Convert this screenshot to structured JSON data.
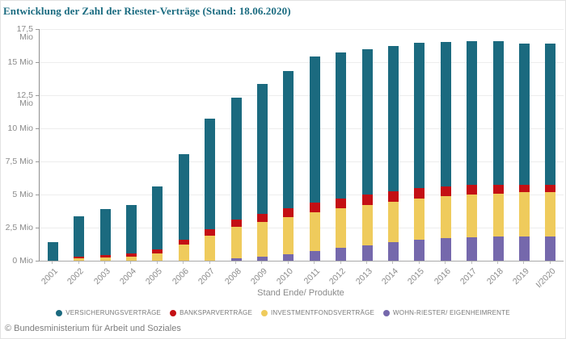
{
  "title": "Entwicklung der Zahl der Riester-Verträge (Stand: 18.06.2020)",
  "footer": "© Bundesministerium für Arbeit und Soziales",
  "colors": {
    "title": "#1A6B80",
    "insurance": "#1B6A7F",
    "bank": "#C40F14",
    "funds": "#EFCB5C",
    "homeownership": "#7568AC",
    "axis_text": "#8a8a8a",
    "gridline": "#ededed"
  },
  "chart_data": {
    "type": "bar",
    "stacked": true,
    "title": "Entwicklung der Zahl der Riester-Verträge (Stand: 18.06.2020)",
    "xlabel": "Stand Ende/ Produkte",
    "ylabel": "",
    "unit": "Mio",
    "ylim": [
      0,
      17.5
    ],
    "grid": "horizontal",
    "legend_position": "bottom",
    "categories": [
      "2001",
      "2002",
      "2003",
      "2004",
      "2005",
      "2006",
      "2007",
      "2008",
      "2009",
      "2010",
      "2011",
      "2012",
      "2013",
      "2014",
      "2015",
      "2016",
      "2017",
      "2018",
      "2019",
      "I/2020"
    ],
    "yticks": [
      {
        "v": 17.5,
        "label": "17,5 Mio"
      },
      {
        "v": 15,
        "label": "15 Mio"
      },
      {
        "v": 12.5,
        "label": "12,5 Mio"
      },
      {
        "v": 10,
        "label": "10 Mio"
      },
      {
        "v": 7.5,
        "label": "7,5 Mio"
      },
      {
        "v": 5,
        "label": "5 Mio"
      },
      {
        "v": 2.5,
        "label": "2,5 Mio"
      },
      {
        "v": 0,
        "label": "0 Mio"
      }
    ],
    "stack_order": "bottom-to-top is reverse of series list",
    "series": [
      {
        "name": "VERSICHERUNGSVERTRÄGE",
        "color": "#1B6A7F",
        "values": [
          1.4,
          3.05,
          3.49,
          3.66,
          4.8,
          6.47,
          8.36,
          9.19,
          9.79,
          10.38,
          11.0,
          11.02,
          11.01,
          10.94,
          10.97,
          10.91,
          10.85,
          10.82,
          10.67,
          10.65
        ]
      },
      {
        "name": "BANKSPARVERTRÄGE",
        "color": "#C40F14",
        "values": [
          0,
          0.15,
          0.2,
          0.21,
          0.26,
          0.35,
          0.48,
          0.55,
          0.63,
          0.7,
          0.75,
          0.78,
          0.81,
          0.81,
          0.8,
          0.77,
          0.73,
          0.66,
          0.6,
          0.58
        ]
      },
      {
        "name": "INVESTMENTFONDSVERTRÄGE",
        "color": "#EFCB5C",
        "values": [
          0,
          0.17,
          0.24,
          0.32,
          0.57,
          1.23,
          1.92,
          2.39,
          2.63,
          2.82,
          2.95,
          2.99,
          3.03,
          3.07,
          3.13,
          3.17,
          3.23,
          3.27,
          3.33,
          3.34
        ]
      },
      {
        "name": "WOHN-RIESTER/ EIGENHEIMRENTE",
        "color": "#7568AC",
        "values": [
          0,
          0,
          0,
          0,
          0,
          0,
          0,
          0.2,
          0.28,
          0.46,
          0.72,
          0.95,
          1.15,
          1.38,
          1.56,
          1.69,
          1.77,
          1.81,
          1.83,
          1.83
        ]
      }
    ]
  }
}
